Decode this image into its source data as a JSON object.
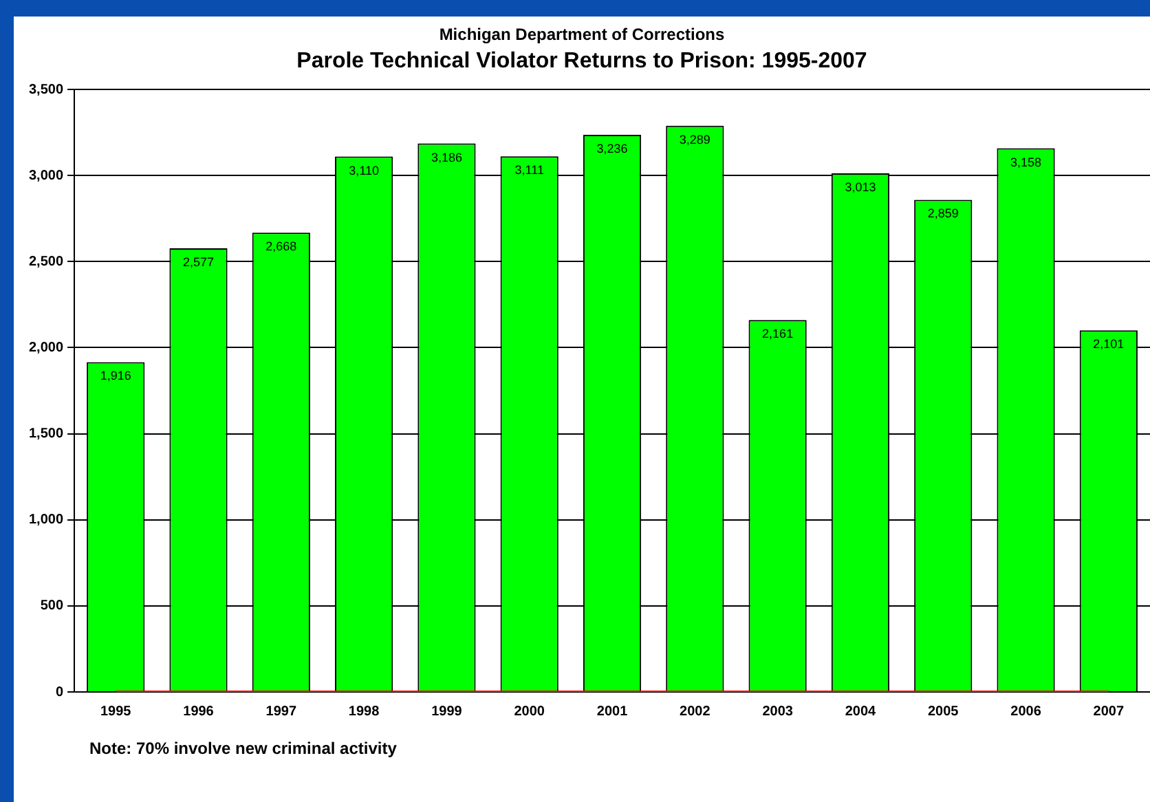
{
  "chart_data": {
    "type": "bar",
    "title": "Parole Technical Violator Returns to Prison: 1995-2007",
    "subtitle": "Michigan Department of Corrections",
    "categories": [
      "1995",
      "1996",
      "1997",
      "1998",
      "1999",
      "2000",
      "2001",
      "2002",
      "2003",
      "2004",
      "2005",
      "2006",
      "2007"
    ],
    "series": [
      {
        "color": "#00ff00",
        "values": [
          1916,
          2577,
          2668,
          3110,
          3186,
          3111,
          3236,
          3289,
          2161,
          3013,
          2859,
          3158,
          2101
        ],
        "value_labels": [
          "1,916",
          "2,577",
          "2,668",
          "3,110",
          "3,186",
          "3,111",
          "3,236",
          "3,289",
          "2,161",
          "3,013",
          "2,859",
          "3,158",
          "2,101"
        ]
      },
      {
        "type": "line",
        "color": "#ff0000",
        "values": [
          0,
          0,
          0,
          0,
          0,
          0,
          0,
          0,
          0,
          0,
          0,
          0,
          0
        ]
      }
    ],
    "ylim": [
      0,
      3500
    ],
    "yticks": [
      {
        "value": 0,
        "label": "0"
      },
      {
        "value": 500,
        "label": "500"
      },
      {
        "value": 1000,
        "label": "1,000"
      },
      {
        "value": 1500,
        "label": "1,500"
      },
      {
        "value": 2000,
        "label": "2,000"
      },
      {
        "value": 2500,
        "label": "2,500"
      },
      {
        "value": 3000,
        "label": "3,000"
      },
      {
        "value": 3500,
        "label": "3,500"
      }
    ],
    "grid": "y",
    "legend": false,
    "marker": "none",
    "annotations": [
      "Note: 70% involve new criminal activity"
    ]
  }
}
